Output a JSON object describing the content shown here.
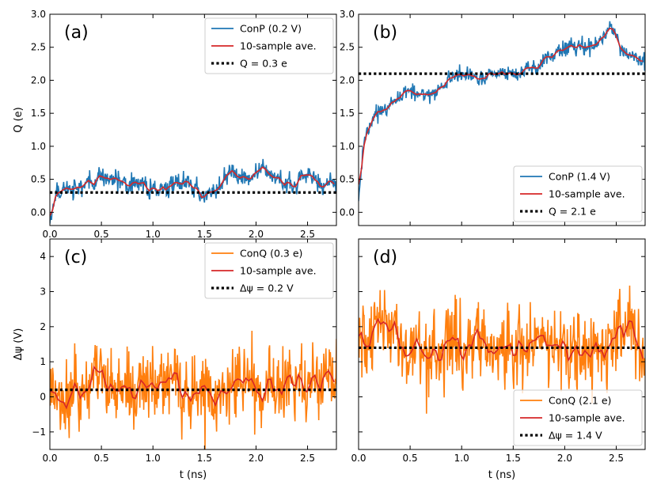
{
  "figure": {
    "colors": {
      "conp": "#1f77b4",
      "conq": "#ff7f0e",
      "ave": "#d62728",
      "ref": "#000000"
    },
    "xlabel": "t (ns)",
    "ylabel_top": "Q (e)",
    "ylabel_bottom": "Δψ (V)"
  },
  "chart_data": [
    {
      "type": "line",
      "id": "a",
      "letter": "(a)",
      "xlim": [
        0.0,
        2.78
      ],
      "ylim": [
        -0.2,
        3.0
      ],
      "xticks": [
        0.0,
        0.5,
        1.0,
        1.5,
        2.0,
        2.5
      ],
      "xtick_labels": [
        "0.0",
        "0.5",
        "1.0",
        "1.5",
        "2.0",
        "2.5"
      ],
      "yticks": [
        0.0,
        0.5,
        1.0,
        1.5,
        2.0,
        2.5,
        3.0
      ],
      "ytick_labels": [
        "0.0",
        "0.5",
        "1.0",
        "1.5",
        "2.0",
        "2.5",
        "3.0"
      ],
      "ylabel": "Q (e)",
      "xlabel": "",
      "legend_loc": "upper right",
      "legend": [
        "ConP (0.2 V)",
        "10-sample ave.",
        "Q = 0.3 e"
      ],
      "reference": 0.3,
      "trend_t": [
        0.0,
        0.05,
        0.15,
        0.3,
        0.5,
        0.8,
        1.2,
        1.5,
        1.75,
        2.2,
        2.5,
        2.78
      ],
      "trend_v": [
        -0.15,
        0.3,
        0.33,
        0.4,
        0.5,
        0.38,
        0.45,
        0.3,
        0.62,
        0.5,
        0.45,
        0.45
      ],
      "noise_amp": 0.12,
      "smooth_wiggle": 0.1,
      "series": [
        {
          "name": "ConP (0.2 V)",
          "role": "raw",
          "color": "#1f77b4"
        },
        {
          "name": "10-sample ave.",
          "role": "average",
          "color": "#d62728"
        },
        {
          "name": "Q = 0.3 e",
          "role": "reference",
          "color": "#000000"
        }
      ]
    },
    {
      "type": "line",
      "id": "b",
      "letter": "(b)",
      "xlim": [
        0.0,
        2.78
      ],
      "ylim": [
        -0.2,
        3.0
      ],
      "xticks": [
        0.0,
        0.5,
        1.0,
        1.5,
        2.0,
        2.5
      ],
      "xtick_labels": [],
      "yticks": [
        0.0,
        0.5,
        1.0,
        1.5,
        2.0,
        2.5,
        3.0
      ],
      "ytick_labels": [
        "0.0",
        "0.5",
        "1.0",
        "1.5",
        "2.0",
        "2.5",
        "3.0"
      ],
      "ylabel": "",
      "xlabel": "",
      "legend_loc": "lower right",
      "legend": [
        "ConP (1.4 V)",
        "10-sample ave.",
        "Q = 2.1 e"
      ],
      "reference": 2.1,
      "trend_t": [
        0.0,
        0.05,
        0.15,
        0.3,
        0.5,
        0.7,
        0.9,
        1.2,
        1.6,
        2.0,
        2.3,
        2.45,
        2.55,
        2.78
      ],
      "trend_v": [
        0.2,
        1.0,
        1.5,
        1.65,
        1.85,
        1.75,
        2.05,
        2.05,
        2.1,
        2.5,
        2.55,
        2.8,
        2.35,
        2.25
      ],
      "noise_amp": 0.1,
      "smooth_wiggle": 0.06,
      "series": [
        {
          "name": "ConP (1.4 V)",
          "role": "raw",
          "color": "#1f77b4"
        },
        {
          "name": "10-sample ave.",
          "role": "average",
          "color": "#d62728"
        },
        {
          "name": "Q = 2.1 e",
          "role": "reference",
          "color": "#000000"
        }
      ]
    },
    {
      "type": "line",
      "id": "c",
      "letter": "(c)",
      "xlim": [
        0.0,
        2.78
      ],
      "ylim": [
        -1.5,
        4.5
      ],
      "xticks": [
        0.0,
        0.5,
        1.0,
        1.5,
        2.0,
        2.5
      ],
      "xtick_labels": [
        "0.0",
        "0.5",
        "1.0",
        "1.5",
        "2.0",
        "2.5"
      ],
      "yticks": [
        -1,
        0,
        1,
        2,
        3,
        4
      ],
      "ytick_labels": [
        "−1",
        "0",
        "1",
        "2",
        "3",
        "4"
      ],
      "ylabel": "Δψ (V)",
      "xlabel": "t (ns)",
      "legend_loc": "upper right",
      "legend": [
        "ConQ (0.3 e)",
        "10-sample ave.",
        "Δψ = 0.2 V"
      ],
      "reference": 0.2,
      "trend_t": [
        0.0,
        2.78
      ],
      "trend_v": [
        0.25,
        0.25
      ],
      "noise_amp": 0.95,
      "smooth_wiggle": 0.35,
      "series": [
        {
          "name": "ConQ (0.3 e)",
          "role": "raw",
          "color": "#ff7f0e"
        },
        {
          "name": "10-sample ave.",
          "role": "average",
          "color": "#d62728"
        },
        {
          "name": "Δψ = 0.2 V",
          "role": "reference",
          "color": "#000000"
        }
      ]
    },
    {
      "type": "line",
      "id": "d",
      "letter": "(d)",
      "xlim": [
        0.0,
        2.78
      ],
      "ylim": [
        -1.5,
        4.5
      ],
      "xticks": [
        0.0,
        0.5,
        1.0,
        1.5,
        2.0,
        2.5
      ],
      "xtick_labels": [
        "0.0",
        "0.5",
        "1.0",
        "1.5",
        "2.0",
        "2.5"
      ],
      "yticks": [
        -1,
        0,
        1,
        2,
        3,
        4
      ],
      "ytick_labels": [],
      "ylabel": "",
      "xlabel": "t (ns)",
      "legend_loc": "lower right",
      "legend": [
        "ConQ (2.1 e)",
        "10-sample ave.",
        "Δψ = 1.4 V"
      ],
      "reference": 1.4,
      "trend_t": [
        0.0,
        2.78
      ],
      "trend_v": [
        1.45,
        1.45
      ],
      "noise_amp": 1.0,
      "smooth_wiggle": 0.4,
      "series": [
        {
          "name": "ConQ (2.1 e)",
          "role": "raw",
          "color": "#ff7f0e"
        },
        {
          "name": "10-sample ave.",
          "role": "average",
          "color": "#d62728"
        },
        {
          "name": "Δψ = 1.4 V",
          "role": "reference",
          "color": "#000000"
        }
      ]
    }
  ]
}
